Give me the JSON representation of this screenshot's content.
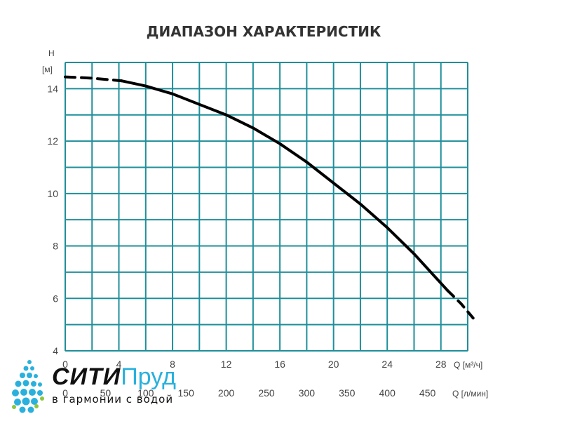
{
  "chart_data": {
    "type": "line",
    "title": "ДИАПАЗОН ХАРАКТЕРИСТИК",
    "ylabel_symbol": "Н",
    "ylabel_unit": "[м]",
    "xlabel_m3h": "Q [м³/ч]",
    "xlabel_lmin": "Q [л/мин]",
    "ylim": [
      4,
      15
    ],
    "xlim": [
      0,
      30
    ],
    "y_ticks": [
      "4",
      "6",
      "8",
      "10",
      "12",
      "14"
    ],
    "x_ticks_m3h": [
      "0",
      "4",
      "8",
      "12",
      "16",
      "20",
      "24",
      "28"
    ],
    "x_ticks_lmin": [
      "0",
      "50",
      "100",
      "150",
      "200",
      "250",
      "300",
      "350",
      "400",
      "450"
    ],
    "grid": true,
    "grid_color": "#1f8f9a",
    "series": [
      {
        "color": "#000000",
        "solid": {
          "x": [
            4.2,
            6,
            8,
            10,
            12,
            14,
            16,
            18,
            20,
            22,
            24,
            26,
            28.5
          ],
          "y": [
            14.3,
            14.1,
            13.8,
            13.4,
            13.0,
            12.5,
            11.9,
            11.2,
            10.4,
            9.6,
            8.7,
            7.7,
            6.3
          ]
        },
        "dashed_start": {
          "x": [
            0,
            2,
            4.2
          ],
          "y": [
            14.45,
            14.4,
            14.3
          ]
        },
        "dashed_end": {
          "x": [
            28.5,
            29.5,
            30.4
          ],
          "y": [
            6.3,
            5.8,
            5.25
          ]
        }
      }
    ]
  },
  "logo": {
    "name_part1": "СИТИ",
    "name_part2": "Пруд",
    "tagline": "в гармонии с водой"
  }
}
